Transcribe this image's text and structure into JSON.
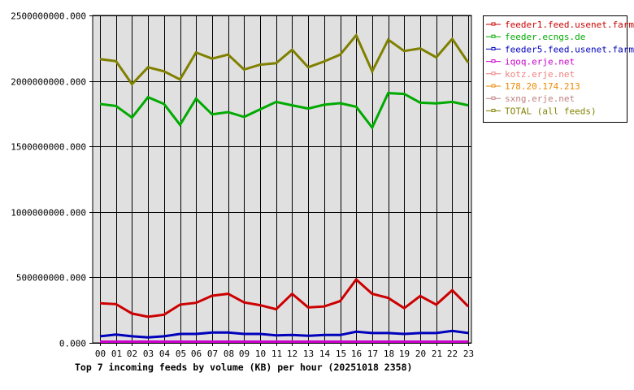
{
  "chart_data": {
    "type": "line",
    "title": "Top 7 incoming feeds by volume (KB) per hour (20251018 2358)",
    "xlabel": "",
    "ylabel": "",
    "ylim": [
      0,
      2500000000
    ],
    "yticks": [
      "0.000",
      "500000000.000",
      "1000000000.000",
      "1500000000.000",
      "2000000000.000",
      "2500000000.000"
    ],
    "ytick_values": [
      0,
      500000000,
      1000000000,
      1500000000,
      2000000000,
      2500000000
    ],
    "grid": true,
    "legend_position": "right-top",
    "categories": [
      "00",
      "01",
      "02",
      "03",
      "04",
      "05",
      "06",
      "07",
      "08",
      "09",
      "10",
      "11",
      "12",
      "13",
      "14",
      "15",
      "16",
      "17",
      "18",
      "19",
      "20",
      "21",
      "22",
      "23"
    ],
    "series": [
      {
        "name": "feeder1.feed.usenet.farm",
        "color": "#cc0000",
        "values": [
          302000000,
          296000000,
          224000000,
          199000000,
          215000000,
          292000000,
          306000000,
          360000000,
          375000000,
          309000000,
          288000000,
          257000000,
          375000000,
          271000000,
          278000000,
          319000000,
          484000000,
          375000000,
          343000000,
          265000000,
          358000000,
          292000000,
          402000000,
          278000000
        ]
      },
      {
        "name": "feeder.ecngs.de",
        "color": "#00aa00",
        "values": [
          1824000000,
          1809000000,
          1720000000,
          1876000000,
          1824000000,
          1665000000,
          1865000000,
          1745000000,
          1762000000,
          1725000000,
          1783000000,
          1840000000,
          1814000000,
          1789000000,
          1818000000,
          1830000000,
          1803000000,
          1644000000,
          1907000000,
          1901000000,
          1834000000,
          1828000000,
          1840000000,
          1814000000
        ]
      },
      {
        "name": "feeder5.feed.usenet.farm",
        "color": "#0000bb",
        "values": [
          50000000,
          64000000,
          50000000,
          42000000,
          50000000,
          68000000,
          68000000,
          79000000,
          79000000,
          68000000,
          68000000,
          58000000,
          60000000,
          54000000,
          60000000,
          60000000,
          85000000,
          75000000,
          75000000,
          68000000,
          75000000,
          75000000,
          91000000,
          75000000
        ]
      },
      {
        "name": "iqoq.erje.net",
        "color": "#cc00cc",
        "values": [
          0,
          0,
          0,
          0,
          0,
          0,
          0,
          0,
          0,
          0,
          0,
          0,
          0,
          0,
          0,
          0,
          0,
          0,
          0,
          0,
          0,
          0,
          0,
          0
        ]
      },
      {
        "name": "kotz.erje.net",
        "color": "#f08080",
        "values": [
          0,
          0,
          0,
          0,
          0,
          0,
          0,
          0,
          0,
          0,
          0,
          0,
          0,
          0,
          0,
          0,
          0,
          0,
          0,
          0,
          0,
          0,
          0,
          0
        ]
      },
      {
        "name": "178.20.174.213",
        "color": "#ee8800",
        "values": [
          0,
          0,
          0,
          0,
          0,
          0,
          0,
          0,
          0,
          0,
          0,
          0,
          0,
          0,
          0,
          0,
          0,
          0,
          0,
          0,
          0,
          0,
          0,
          0
        ]
      },
      {
        "name": "sxng.erje.net",
        "color": "#c08080",
        "values": [
          0,
          0,
          0,
          0,
          0,
          0,
          0,
          0,
          0,
          0,
          0,
          0,
          0,
          0,
          0,
          0,
          0,
          0,
          0,
          0,
          0,
          0,
          0,
          0
        ]
      },
      {
        "name": "TOTAL (all feeds)",
        "color": "#808000",
        "values": [
          2166000000,
          2151000000,
          1975000000,
          2104000000,
          2073000000,
          2011000000,
          2217000000,
          2170000000,
          2201000000,
          2087000000,
          2124000000,
          2135000000,
          2238000000,
          2104000000,
          2149000000,
          2201000000,
          2348000000,
          2073000000,
          2315000000,
          2228000000,
          2248000000,
          2180000000,
          2321000000,
          2139000000
        ]
      }
    ]
  }
}
